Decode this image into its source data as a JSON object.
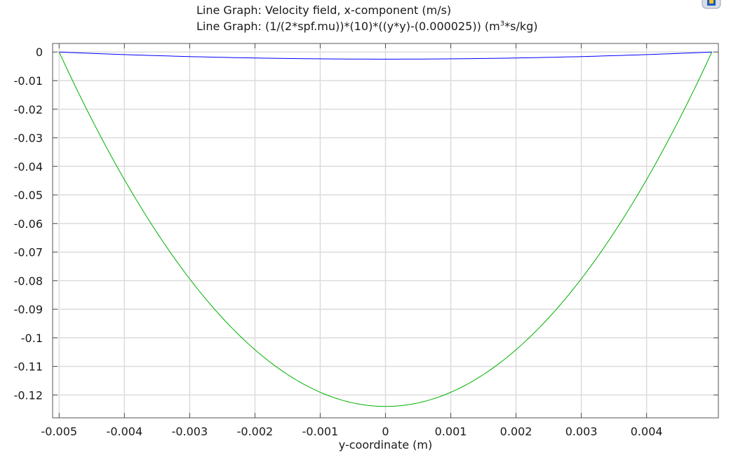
{
  "chart_data": {
    "type": "line",
    "title_lines": [
      {
        "prefix": "Line Graph: ",
        "text": "Velocity field, x-component (m/s)"
      },
      {
        "prefix": "Line Graph: ",
        "text": "(1/(2*spf.mu))*(10)*((y*y)-(0.000025)) (m",
        "unit_sup": "3",
        "unit_tail": "*s/kg)"
      }
    ],
    "xlabel": "y-coordinate (m)",
    "ylabel": "",
    "xlim": [
      -0.0051,
      0.0051
    ],
    "ylim": [
      -0.128,
      0.003
    ],
    "xticks": [
      -0.005,
      -0.004,
      -0.003,
      -0.002,
      -0.001,
      0,
      0.001,
      0.002,
      0.003,
      0.004
    ],
    "xtick_labels": [
      "-0.005",
      "-0.004",
      "-0.003",
      "-0.002",
      "-0.001",
      "0",
      "0.001",
      "0.002",
      "0.003",
      "0.004"
    ],
    "yticks": [
      0,
      -0.01,
      -0.02,
      -0.03,
      -0.04,
      -0.05,
      -0.06,
      -0.07,
      -0.08,
      -0.09,
      -0.1,
      -0.11,
      -0.12
    ],
    "ytick_labels": [
      "0",
      "-0.01",
      "-0.02",
      "-0.03",
      "-0.04",
      "-0.05",
      "-0.06",
      "-0.07",
      "-0.08",
      "-0.09",
      "-0.1",
      "-0.11",
      "-0.12"
    ],
    "grid": true,
    "series": [
      {
        "name": "Velocity field, x-component (m/s)",
        "color": "#0000ff",
        "x": [
          -0.005,
          -0.004,
          -0.003,
          -0.002,
          -0.001,
          0,
          0.001,
          0.002,
          0.003,
          0.004,
          0.005
        ],
        "y": [
          0,
          -0.00089,
          -0.00158,
          -0.00208,
          -0.00238,
          -0.00248,
          -0.00238,
          -0.00208,
          -0.00158,
          -0.00089,
          0
        ]
      },
      {
        "name": "(1/(2*spf.mu))*(10)*((y*y)-(0.000025))",
        "color": "#00b000",
        "x": [
          -0.005,
          -0.004,
          -0.003,
          -0.002,
          -0.001,
          0,
          0.001,
          0.002,
          0.003,
          0.004,
          0.005
        ],
        "y": [
          0,
          -0.04464,
          -0.07937,
          -0.10417,
          -0.11905,
          -0.12401,
          -0.11905,
          -0.10417,
          -0.07937,
          -0.04464,
          0
        ]
      }
    ]
  },
  "ui": {
    "corner_icon": "window-resize-icon",
    "title_prefix": "Line Graph: "
  }
}
